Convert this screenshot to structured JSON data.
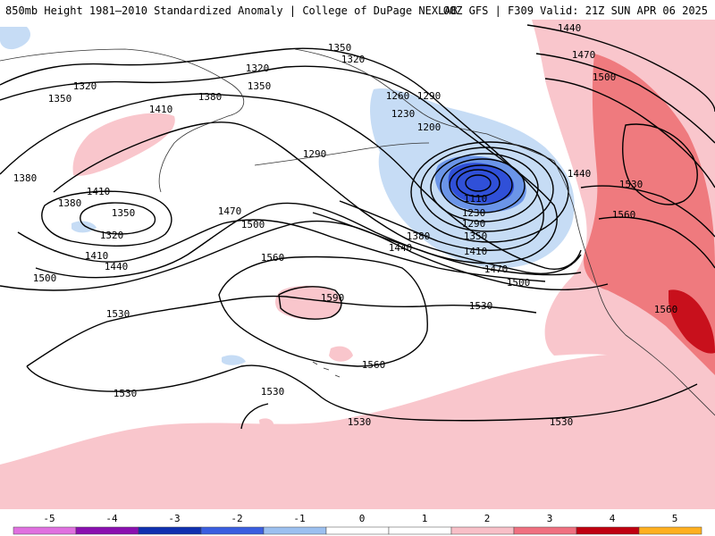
{
  "header": {
    "title_left": "850mb Height 1981–2010 Standardized Anomaly | College of DuPage NEXLAB",
    "title_right": "00Z GFS | F309 Valid: 21Z SUN APR 06 2025"
  },
  "contours": {
    "labels": [
      {
        "text": "1350"
      },
      {
        "text": "1320"
      },
      {
        "text": "1350"
      },
      {
        "text": "1320"
      },
      {
        "text": "1380"
      },
      {
        "text": "1410"
      },
      {
        "text": "1350"
      },
      {
        "text": "1320"
      },
      {
        "text": "1260"
      },
      {
        "text": "1290"
      },
      {
        "text": "1230"
      },
      {
        "text": "1200"
      },
      {
        "text": "1290"
      },
      {
        "text": "1380"
      },
      {
        "text": "1410"
      },
      {
        "text": "1380"
      },
      {
        "text": "1350"
      },
      {
        "text": "1320"
      },
      {
        "text": "1470"
      },
      {
        "text": "1500"
      },
      {
        "text": "1410"
      },
      {
        "text": "1440"
      },
      {
        "text": "1500"
      },
      {
        "text": "1110"
      },
      {
        "text": "1230"
      },
      {
        "text": "1290"
      },
      {
        "text": "1380"
      },
      {
        "text": "1350"
      },
      {
        "text": "1440"
      },
      {
        "text": "1410"
      },
      {
        "text": "1470"
      },
      {
        "text": "1500"
      },
      {
        "text": "1560"
      },
      {
        "text": "1590"
      },
      {
        "text": "1530"
      },
      {
        "text": "1530"
      },
      {
        "text": "1560"
      },
      {
        "text": "1530"
      },
      {
        "text": "1530"
      },
      {
        "text": "1530"
      },
      {
        "text": "1530"
      },
      {
        "text": "1440"
      },
      {
        "text": "1470"
      },
      {
        "text": "1500"
      },
      {
        "text": "1440"
      },
      {
        "text": "1530"
      },
      {
        "text": "1560"
      },
      {
        "text": "1560"
      }
    ]
  },
  "legend": {
    "ticks": [
      "-5",
      "-4",
      "-3",
      "-2",
      "-1",
      "0",
      "1",
      "2",
      "3",
      "4",
      "5"
    ],
    "segments": [
      {
        "color": "#e070e0"
      },
      {
        "color": "#8a10b0"
      },
      {
        "color": "#1030b0"
      },
      {
        "color": "#3a5ee0"
      },
      {
        "color": "#9cc0f0"
      },
      {
        "color": "#ffffff"
      },
      {
        "color": "#ffffff"
      },
      {
        "color": "#f8c0c8"
      },
      {
        "color": "#f07080"
      },
      {
        "color": "#c00010"
      },
      {
        "color": "#ffb020"
      }
    ]
  },
  "colors": {
    "ocean": "#ffffff",
    "pos_light": "#f9c6cc",
    "pos_medium": "#ef7a7e",
    "pos_strong": "#c8101c",
    "neg_light": "#c6dcf5",
    "neg_medium": "#6b95e8",
    "neg_strong": "#3050d8"
  }
}
